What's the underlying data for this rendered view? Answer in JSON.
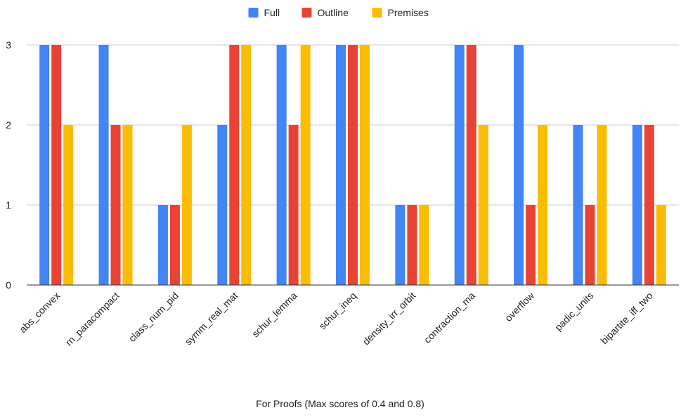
{
  "chart_data": {
    "type": "bar",
    "title": "",
    "xlabel": "For Proofs (Max scores of 0.4 and 0.8)",
    "ylabel": "",
    "ylim": [
      0,
      3
    ],
    "yticks": [
      0,
      1,
      2,
      3
    ],
    "grid": true,
    "legend_position": "top",
    "categories": [
      "abs_convex",
      "rn_paracompact",
      "class_num_pid",
      "symm_real_mat",
      "schur_lemma",
      "schur_ineq",
      "density_irr_orbit",
      "contraction_ma",
      "overflow",
      "padic_units",
      "bipartite_iff_two"
    ],
    "series": [
      {
        "name": "Full",
        "color": "#4285f4",
        "values": [
          3,
          3,
          1,
          2,
          3,
          3,
          1,
          3,
          3,
          2,
          2
        ]
      },
      {
        "name": "Outline",
        "color": "#ea4335",
        "values": [
          3,
          2,
          1,
          3,
          2,
          3,
          1,
          3,
          1,
          1,
          2
        ]
      },
      {
        "name": "Premises",
        "color": "#fbbc04",
        "values": [
          2,
          2,
          2,
          3,
          3,
          3,
          1,
          2,
          2,
          2,
          1
        ]
      }
    ]
  }
}
